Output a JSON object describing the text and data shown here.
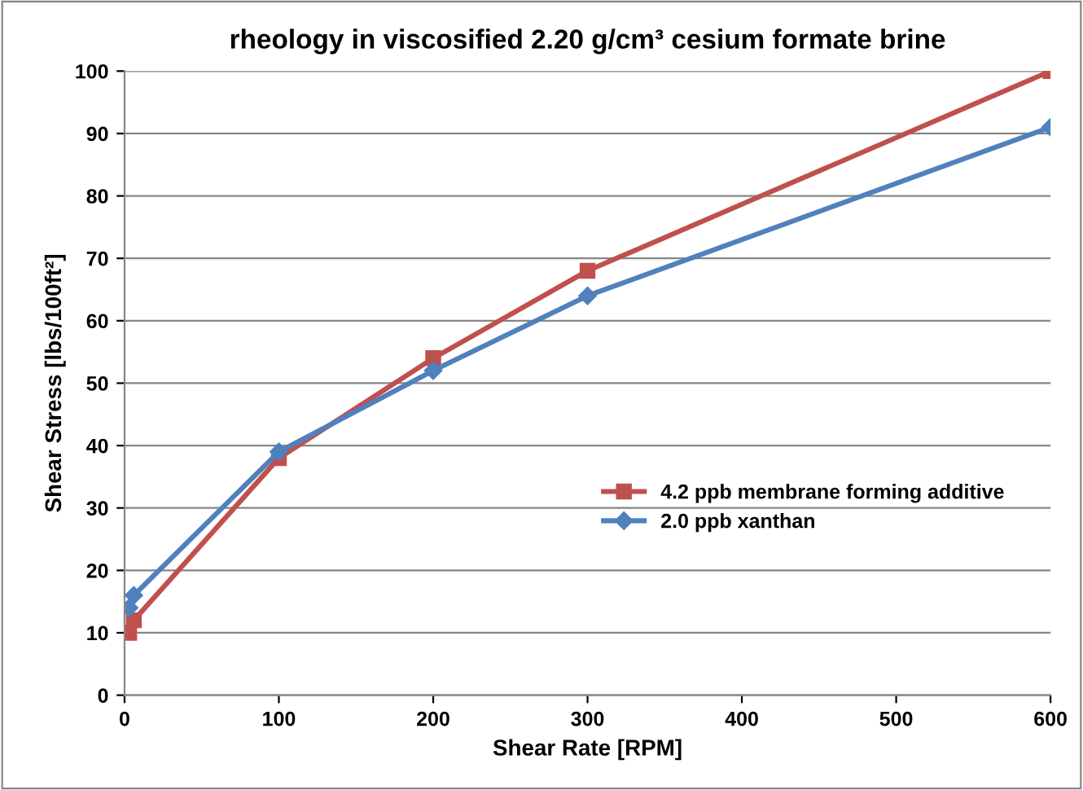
{
  "chart_data": {
    "type": "line",
    "title": "rheology in viscosified 2.20 g/cm³ cesium formate brine",
    "xlabel": "Shear Rate [RPM]",
    "ylabel": "Shear Stress [lbs/100ft²]",
    "xlim": [
      0,
      600
    ],
    "xticks": [
      0,
      100,
      200,
      300,
      400,
      500,
      600
    ],
    "ylim": [
      0,
      100
    ],
    "yticks": [
      0,
      10,
      20,
      30,
      40,
      50,
      60,
      70,
      80,
      90,
      100
    ],
    "grid": "y",
    "legend": "right",
    "series": [
      {
        "name": "4.2 ppb membrane forming additive",
        "color": "#c0504d",
        "marker": "square",
        "x": [
          3,
          6,
          100,
          200,
          300,
          600
        ],
        "values": [
          10,
          12,
          38,
          54,
          68,
          100
        ]
      },
      {
        "name": "2.0 ppb xanthan",
        "color": "#4f81bd",
        "marker": "diamond",
        "x": [
          3,
          6,
          100,
          200,
          300,
          600
        ],
        "values": [
          14,
          16,
          39,
          52,
          64,
          91
        ]
      }
    ]
  }
}
